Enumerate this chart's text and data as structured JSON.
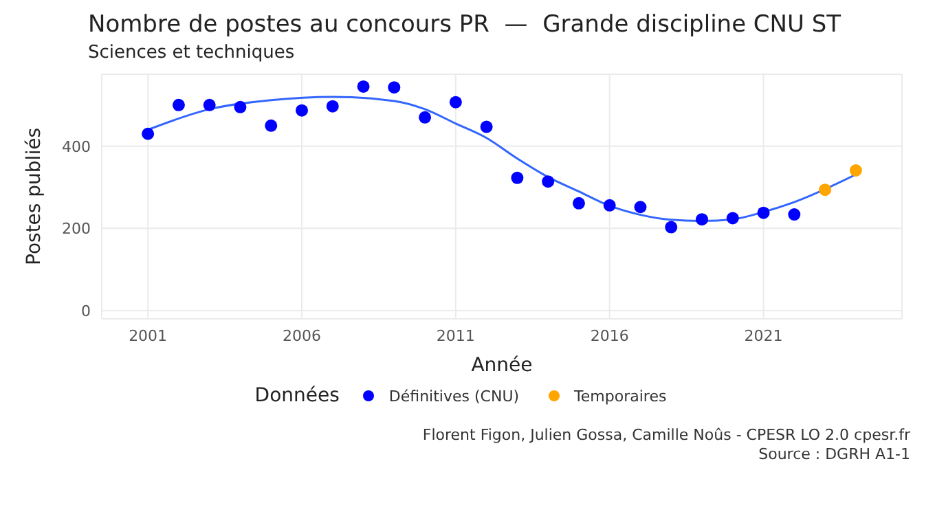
{
  "chart_data": {
    "type": "scatter",
    "title": "Nombre de postes au concours PR  —  Grande discipline CNU ST",
    "subtitle": "Sciences et techniques",
    "xlabel": "Année",
    "ylabel": "Postes publiés",
    "legend_title": "Données",
    "legend": "bottom",
    "grid": true,
    "marker": "circle",
    "xlim": [
      1999.5,
      2025.5
    ],
    "xticks": [
      2001,
      2006,
      2011,
      2016,
      2021
    ],
    "ylim": [
      -20,
      575
    ],
    "yticks": [
      0,
      200,
      400
    ],
    "series": [
      {
        "name": "Définitives (CNU)",
        "color": "#0000ff",
        "x": [
          2001,
          2002,
          2003,
          2004,
          2005,
          2006,
          2007,
          2008,
          2009,
          2010,
          2011,
          2012,
          2013,
          2014,
          2015,
          2016,
          2017,
          2018,
          2019,
          2020,
          2021,
          2022
        ],
        "values": [
          430,
          500,
          500,
          495,
          450,
          487,
          497,
          545,
          543,
          470,
          507,
          447,
          323,
          314,
          261,
          256,
          252,
          203,
          222,
          225,
          238,
          234
        ]
      },
      {
        "name": "Temporaires",
        "color": "#ffa500",
        "x": [
          2023,
          2024
        ],
        "values": [
          294,
          341
        ]
      },
      {
        "type": "line",
        "marker": "none",
        "color": "#3366ff",
        "x": [
          2001,
          2003,
          2005,
          2007,
          2009,
          2010,
          2011,
          2012,
          2013,
          2014,
          2015,
          2016,
          2017,
          2018,
          2019,
          2020,
          2021,
          2022,
          2024
        ],
        "values": [
          440,
          490,
          512,
          520,
          510,
          490,
          455,
          420,
          370,
          325,
          290,
          255,
          233,
          221,
          218,
          222,
          240,
          264,
          331
        ]
      }
    ],
    "annotations": [
      "Florent Figon, Julien Gossa, Camille Noûs - CPESR LO 2.0 cpesr.fr",
      "Source : DGRH A1-1"
    ]
  }
}
